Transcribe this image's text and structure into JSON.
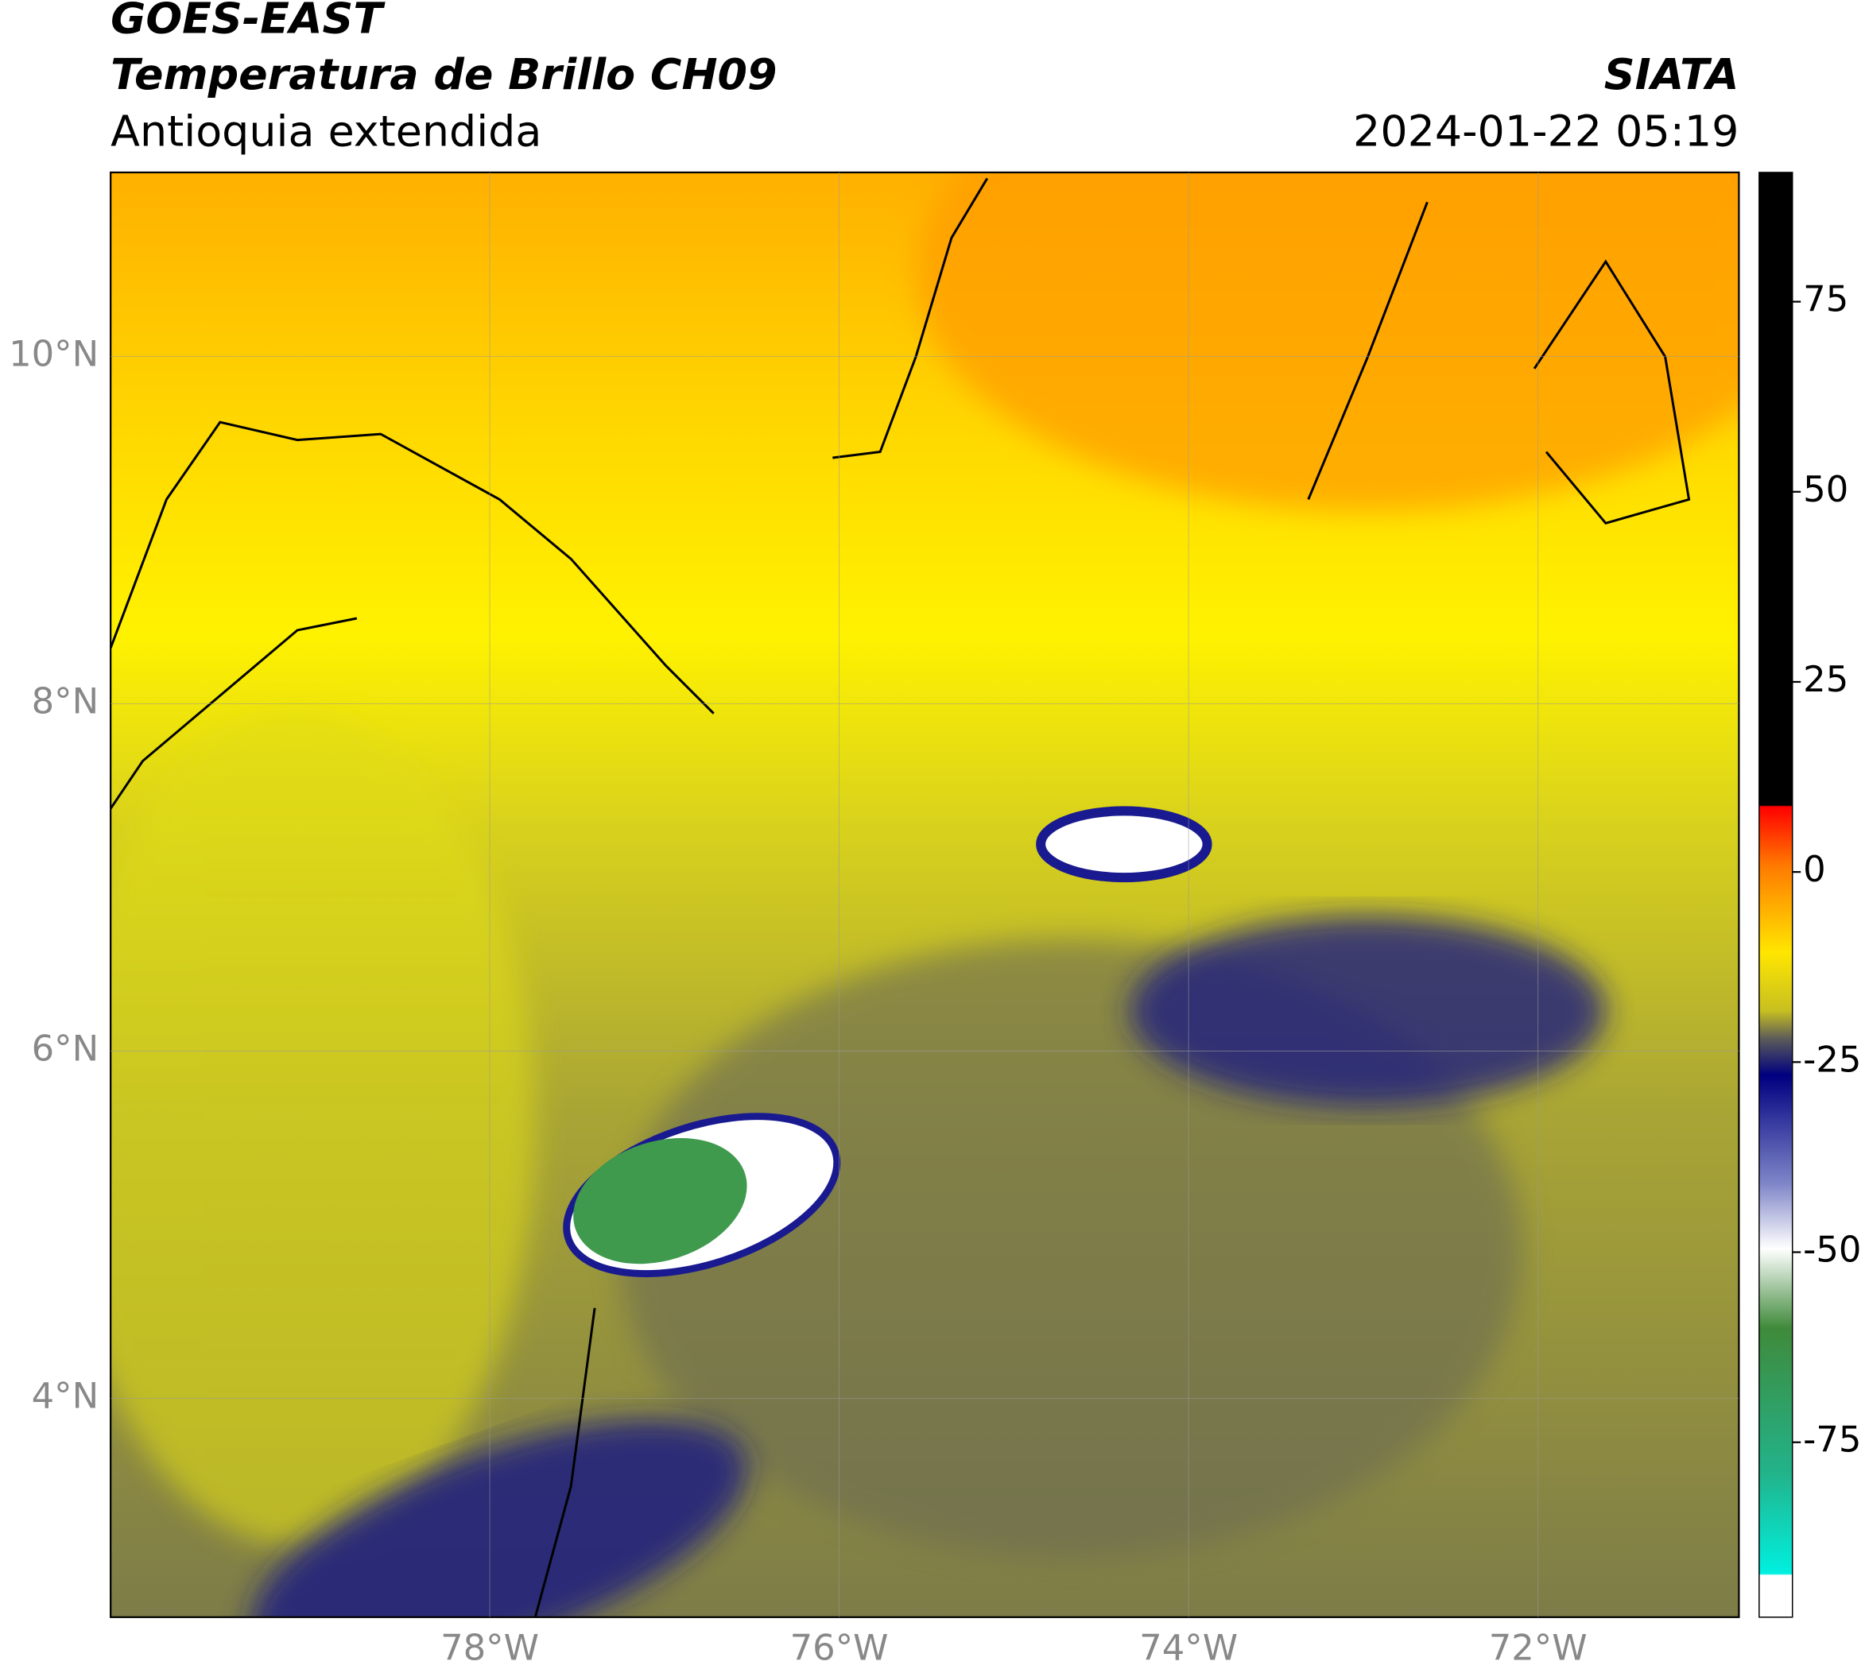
{
  "header": {
    "satellite": "GOES-EAST",
    "product": "Temperatura de Brillo CH09",
    "region": "Antioquia extendida",
    "agency": "SIATA",
    "datetime": "2024-01-22 05:19"
  },
  "map": {
    "xlim": [
      -80.17,
      -70.85
    ],
    "ylim": [
      2.74,
      11.06
    ],
    "xticks": [
      {
        "value": -78,
        "label": "78°W"
      },
      {
        "value": -76,
        "label": "76°W"
      },
      {
        "value": -74,
        "label": "74°W"
      },
      {
        "value": -72,
        "label": "72°W"
      }
    ],
    "yticks": [
      {
        "value": 4,
        "label": "4°N"
      },
      {
        "value": 6,
        "label": "6°N"
      },
      {
        "value": 8,
        "label": "8°N"
      },
      {
        "value": 10,
        "label": "10°N"
      }
    ],
    "grid": true
  },
  "colorbar": {
    "lim": [
      -98,
      92
    ],
    "ticks": [
      -75,
      -50,
      -25,
      0,
      25,
      50,
      75
    ]
  }
}
